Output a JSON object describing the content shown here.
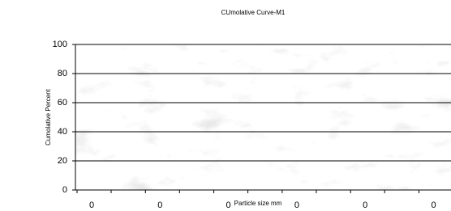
{
  "chart_data": {
    "type": "line",
    "title": "CUmolative Curve-M1",
    "y_label": "Cumolative Percent",
    "x_label": "Particle size mm",
    "categories": [
      "0",
      "0",
      "0",
      "0",
      "0",
      "0"
    ],
    "series": [],
    "ylim": [
      0,
      100
    ],
    "yticks": [
      0,
      20,
      40,
      60,
      80,
      100
    ],
    "grid": true
  }
}
